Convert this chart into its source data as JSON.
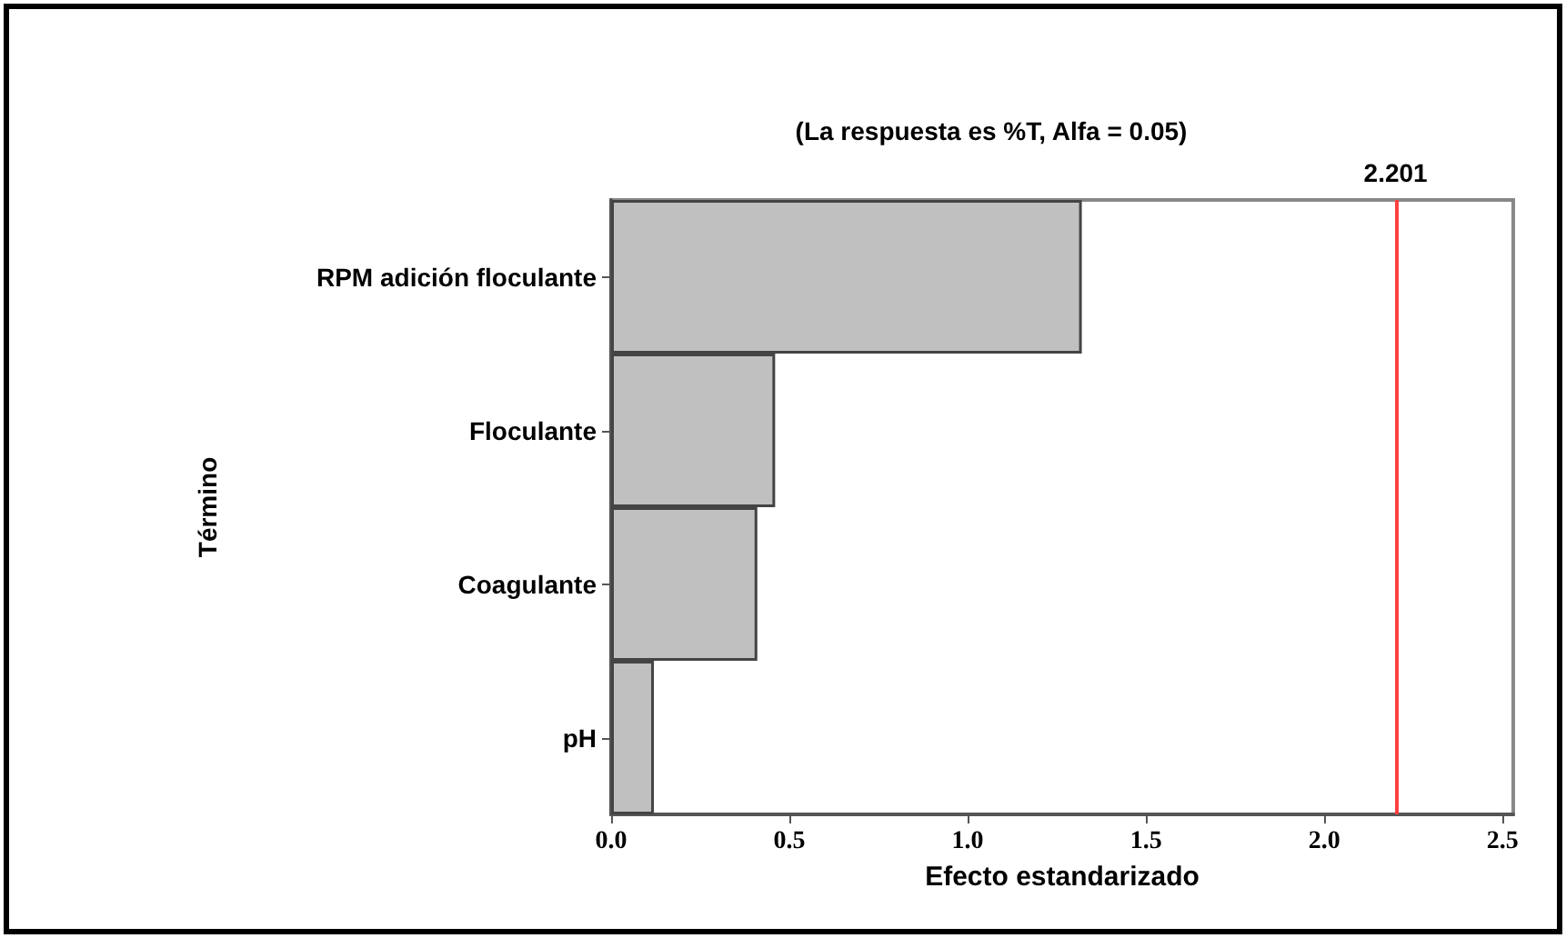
{
  "chart_data": {
    "type": "bar",
    "orientation": "horizontal",
    "title": "(La respuesta es %T, Alfa = 0.05)",
    "xlabel": "Efecto estandarizado",
    "ylabel": "Término",
    "categories": [
      "RPM adición floculante",
      "Floculante",
      "Coagulante",
      "pH"
    ],
    "values": [
      1.32,
      0.46,
      0.41,
      0.12
    ],
    "color": "#c0c0c0",
    "xlim": [
      0,
      2.53
    ],
    "xticks": [
      {
        "value": 0,
        "label": "0.0"
      },
      0.5,
      {
        "value": 1,
        "label": "1.0"
      },
      1.5,
      {
        "value": 2,
        "label": "2.0"
      },
      2.5
    ],
    "ref_lines": [
      {
        "axis": "x",
        "value": 2.201,
        "label": "2.201",
        "color": "#ff4040"
      }
    ],
    "grid": false
  }
}
